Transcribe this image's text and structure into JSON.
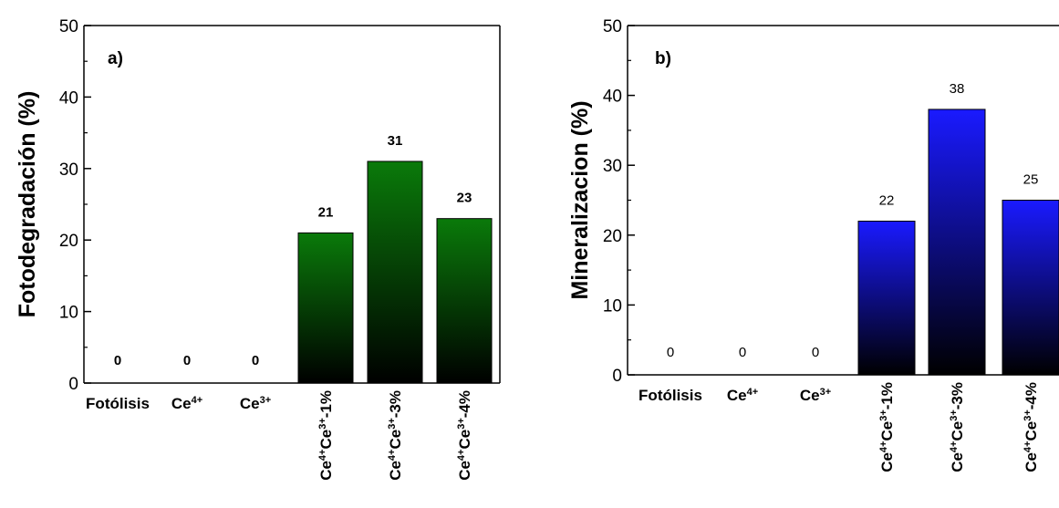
{
  "chart_data": [
    {
      "type": "bar",
      "panel_label": "a)",
      "ylabel": "Fotodegradación (%)",
      "xlabel": "",
      "ylim": [
        0,
        50
      ],
      "yticks": [
        "0",
        "10",
        "20",
        "30",
        "40",
        "50"
      ],
      "categories": [
        "Fotólisis",
        "Ce4+",
        "Ce3+",
        "Ce4+Ce3+-1%",
        "Ce4+Ce3+-3%",
        "Ce4+Ce3+-4%"
      ],
      "values": [
        0,
        0,
        0,
        21,
        31,
        23
      ],
      "value_labels": [
        "0",
        "0",
        "0",
        "21",
        "31",
        "23"
      ],
      "bar_color": "#0a7a0a",
      "gradient": "top-to-bottom fade to black"
    },
    {
      "type": "bar",
      "panel_label": "b)",
      "ylabel": "Mineralizacion (%)",
      "xlabel": "",
      "ylim": [
        0,
        50
      ],
      "yticks": [
        "0",
        "10",
        "20",
        "30",
        "40",
        "50"
      ],
      "categories": [
        "Fotólisis",
        "Ce4+",
        "Ce3+",
        "Ce4+Ce3+-1%",
        "Ce4+Ce3+-3%",
        "Ce4+Ce3+-4%"
      ],
      "values": [
        0,
        0,
        0,
        22,
        38,
        25
      ],
      "value_labels": [
        "0",
        "0",
        "0",
        "22",
        "38",
        "25"
      ],
      "bar_color": "#1a1aff",
      "gradient": "top-to-bottom fade to black"
    }
  ]
}
